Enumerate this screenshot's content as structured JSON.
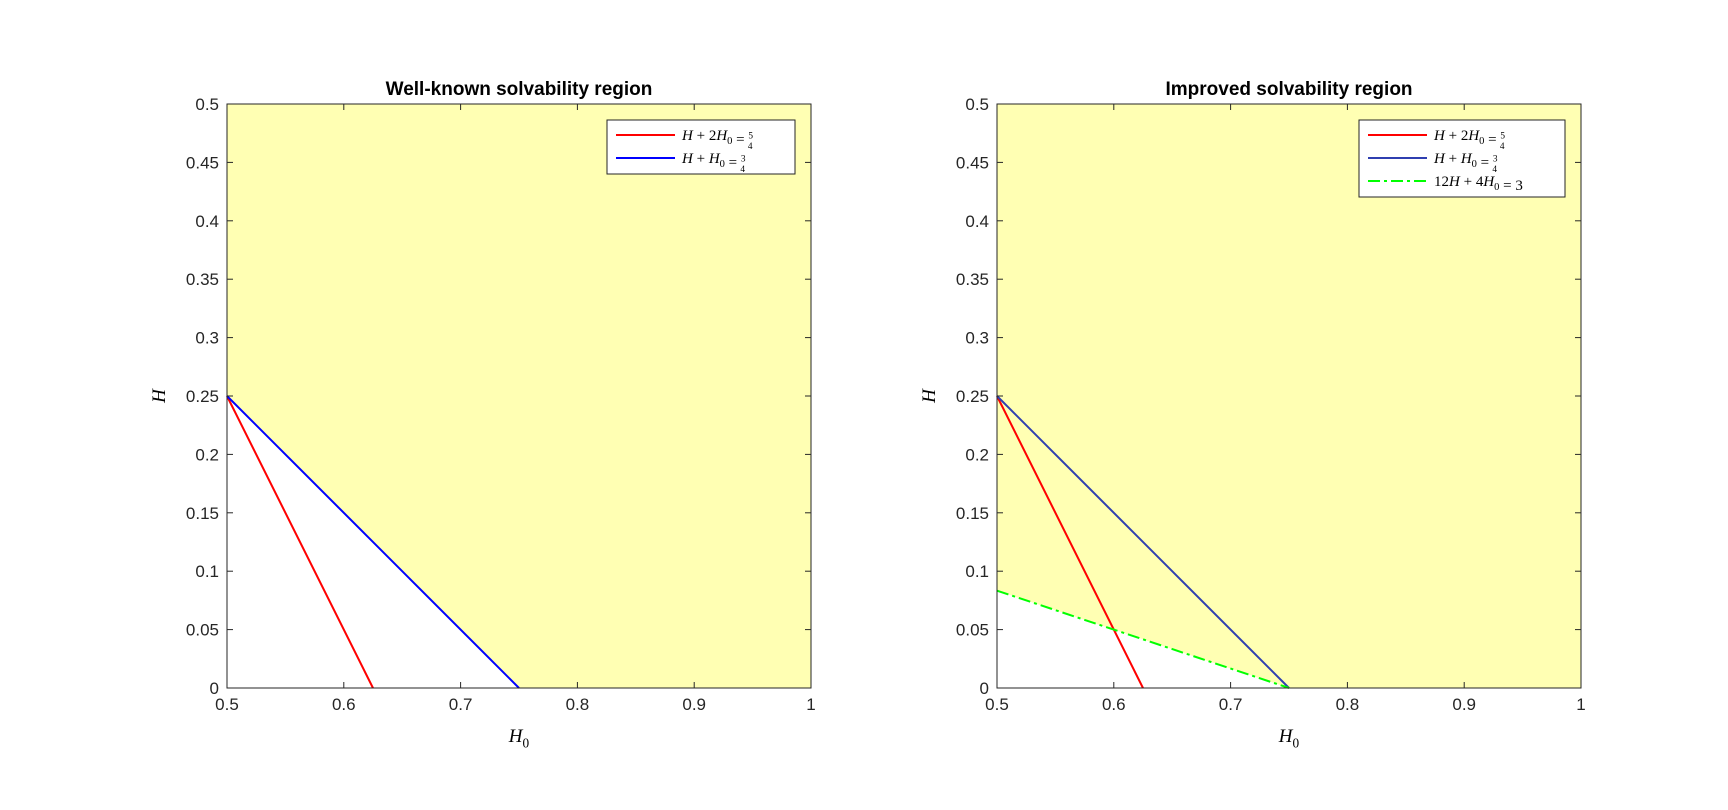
{
  "chart_data": [
    {
      "type": "line",
      "title": "Well-known solvability region",
      "xlabel": "H_0",
      "ylabel": "H",
      "xlim": [
        0.5,
        1
      ],
      "ylim": [
        0,
        0.5
      ],
      "xticks": [
        "0.5",
        "0.6",
        "0.7",
        "0.8",
        "0.9",
        "1"
      ],
      "yticks": [
        "0",
        "0.05",
        "0.1",
        "0.15",
        "0.2",
        "0.25",
        "0.3",
        "0.35",
        "0.4",
        "0.45",
        "0.5"
      ],
      "shaded_region": {
        "color": "#ffffb3",
        "polygon": [
          [
            0.5,
            0.5
          ],
          [
            1,
            0.5
          ],
          [
            1,
            0
          ],
          [
            0.75,
            0
          ],
          [
            0.5,
            0.25
          ]
        ]
      },
      "legend_position": "top-right",
      "series": [
        {
          "name": "H + 2H_0 = 5/4",
          "color": "#ff0000",
          "style": "solid",
          "x": [
            0.5,
            0.625
          ],
          "y": [
            0.25,
            0
          ]
        },
        {
          "name": "H + H_0 = 3/4",
          "color": "#0000ff",
          "style": "solid",
          "x": [
            0.5,
            0.75
          ],
          "y": [
            0.25,
            0
          ]
        }
      ]
    },
    {
      "type": "line",
      "title": "Improved solvability region",
      "xlabel": "H_0",
      "ylabel": "H",
      "xlim": [
        0.5,
        1
      ],
      "ylim": [
        0,
        0.5
      ],
      "xticks": [
        "0.5",
        "0.6",
        "0.7",
        "0.8",
        "0.9",
        "1"
      ],
      "yticks": [
        "0",
        "0.05",
        "0.1",
        "0.15",
        "0.2",
        "0.25",
        "0.3",
        "0.35",
        "0.4",
        "0.45",
        "0.5"
      ],
      "shaded_region": {
        "color": "#ffffb3",
        "polygon": [
          [
            0.5,
            0.5
          ],
          [
            1,
            0.5
          ],
          [
            1,
            0
          ],
          [
            0.75,
            0
          ],
          [
            0.5,
            0.083333
          ]
        ]
      },
      "legend_position": "top-right",
      "series": [
        {
          "name": "H + 2H_0 = 5/4",
          "color": "#ff0000",
          "style": "solid",
          "x": [
            0.5,
            0.625
          ],
          "y": [
            0.25,
            0
          ]
        },
        {
          "name": "H + H_0 = 3/4",
          "color": "#2f3fb0",
          "style": "solid",
          "x": [
            0.5,
            0.75
          ],
          "y": [
            0.25,
            0
          ]
        },
        {
          "name": "12H + 4H_0 = 3",
          "color": "#00ff00",
          "style": "dashdot",
          "x": [
            0.5,
            0.75
          ],
          "y": [
            0.083333,
            0
          ]
        }
      ]
    }
  ]
}
